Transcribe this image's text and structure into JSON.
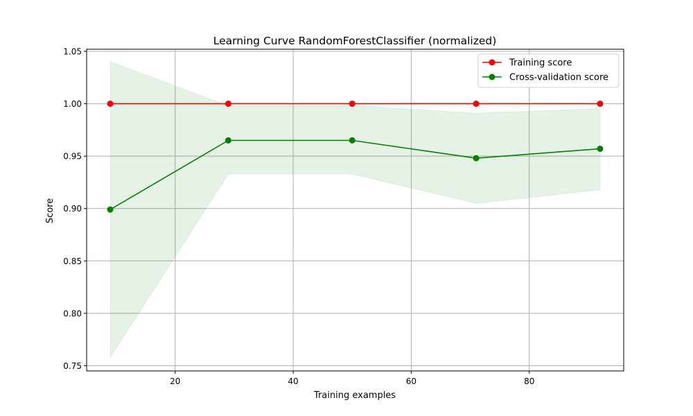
{
  "chart_data": {
    "type": "line",
    "title": "Learning Curve RandomForestClassifier (normalized)",
    "xlabel": "Training examples",
    "ylabel": "Score",
    "xlim": [
      5,
      96
    ],
    "ylim": [
      0.745,
      1.052
    ],
    "x_ticks": [
      20,
      40,
      60,
      80
    ],
    "y_ticks": [
      0.75,
      0.8,
      0.85,
      0.9,
      0.95,
      1.0,
      1.05
    ],
    "x_tick_labels": [
      "20",
      "40",
      "60",
      "80"
    ],
    "y_tick_labels": [
      "0.75",
      "0.80",
      "0.85",
      "0.90",
      "0.95",
      "1.00",
      "1.05"
    ],
    "grid": true,
    "legend_position": "top-right",
    "x": [
      9,
      29,
      50,
      71,
      92
    ],
    "series": [
      {
        "name": "Training score",
        "color": "#ff0000",
        "values": [
          1.0,
          1.0,
          1.0,
          1.0,
          1.0
        ],
        "band_upper": [
          1.0,
          1.0,
          1.0,
          1.0,
          1.0
        ],
        "band_lower": [
          1.0,
          1.0,
          1.0,
          1.0,
          1.0
        ]
      },
      {
        "name": "Cross-validation score",
        "color": "#008000",
        "band_color": "#008000",
        "values": [
          0.899,
          0.965,
          0.965,
          0.948,
          0.957
        ],
        "band_upper": [
          1.04,
          0.998,
          0.998,
          0.991,
          0.995
        ],
        "band_lower": [
          0.758,
          0.933,
          0.933,
          0.905,
          0.918
        ]
      }
    ]
  }
}
